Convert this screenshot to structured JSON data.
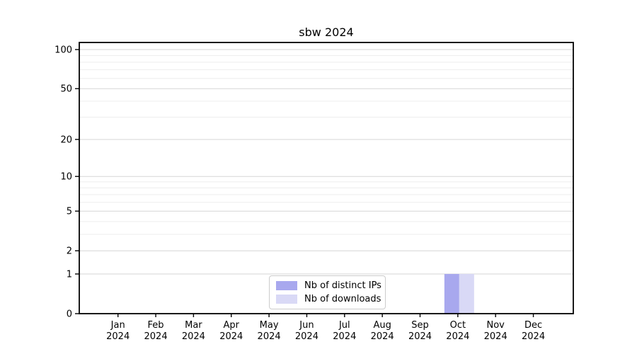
{
  "chart_data": {
    "type": "bar",
    "title": "sbw 2024",
    "categories": [
      "Jan",
      "Feb",
      "Mar",
      "Apr",
      "May",
      "Jun",
      "Jul",
      "Aug",
      "Sep",
      "Oct",
      "Nov",
      "Dec"
    ],
    "year_label": "2024",
    "series": [
      {
        "name": "Nb of distinct IPs",
        "color": "#a8a8ee",
        "values": [
          0,
          0,
          0,
          0,
          0,
          0,
          0,
          0,
          0,
          1,
          0,
          0
        ]
      },
      {
        "name": "Nb of downloads",
        "color": "#d9d9f6",
        "values": [
          0,
          0,
          0,
          0,
          0,
          0,
          0,
          0,
          0,
          1,
          0,
          0
        ]
      }
    ],
    "yscale": "log1p",
    "y_ticks": [
      0,
      1,
      2,
      5,
      10,
      20,
      50,
      100
    ],
    "y_minor_ticks": [
      3,
      4,
      6,
      7,
      8,
      9,
      30,
      40,
      60,
      70,
      80,
      90
    ],
    "ylim": [
      0,
      113
    ],
    "xlabel": "",
    "ylabel": "",
    "grid": "horizontal",
    "legend_position": "lower center",
    "colors": {
      "background": "#ffffff",
      "grid_major": "#d6d6d6",
      "grid_minor": "#ededed",
      "spine": "#000000",
      "tick": "#000000",
      "legend_border": "#cccccc"
    }
  }
}
